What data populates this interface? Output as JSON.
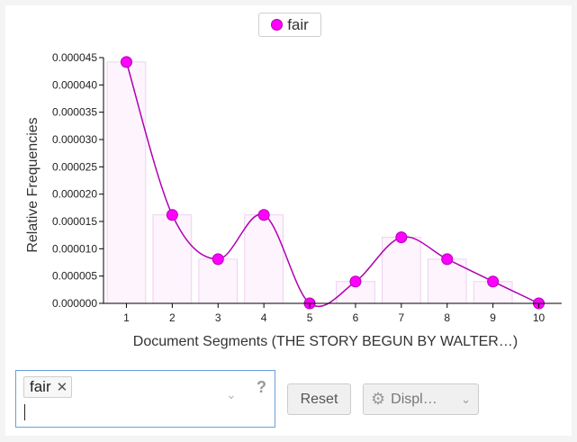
{
  "legend": {
    "label": "fair",
    "color": "#ff00ff"
  },
  "chart_data": {
    "type": "line",
    "xlabel": "Document Segments (THE STORY BEGUN BY WALTER…)",
    "ylabel": "Relative Frequencies",
    "x": [
      1,
      2,
      3,
      4,
      5,
      6,
      7,
      8,
      9,
      10
    ],
    "series": [
      {
        "name": "fair",
        "values": [
          4.42e-05,
          1.62e-05,
          8.1e-06,
          1.62e-05,
          0.0,
          4e-06,
          1.21e-05,
          8.1e-06,
          4e-06,
          0.0
        ]
      }
    ],
    "ylim": [
      0,
      4.5e-05
    ],
    "yticks": [
      "0.000000",
      "0.000005",
      "0.000010",
      "0.000015",
      "0.000020",
      "0.000025",
      "0.000030",
      "0.000035",
      "0.000040",
      "0.000045"
    ],
    "ytick_values": [
      0,
      5e-06,
      1e-05,
      1.5e-05,
      2e-05,
      2.5e-05,
      3e-05,
      3.5e-05,
      4e-05,
      4.5e-05
    ],
    "xticks": [
      "1",
      "2",
      "3",
      "4",
      "5",
      "6",
      "7",
      "8",
      "9",
      "10"
    ],
    "colors": {
      "line": "#b000b0",
      "point": "#ff00ff",
      "bar_fill": "#fdf4fd",
      "bar_stroke": "#f0d0f0"
    },
    "grid": false
  },
  "controls": {
    "term_chip": "fair",
    "term_chip_remove": "✕",
    "help": "?",
    "reset_label": "Reset",
    "display_label": "Displ…"
  }
}
